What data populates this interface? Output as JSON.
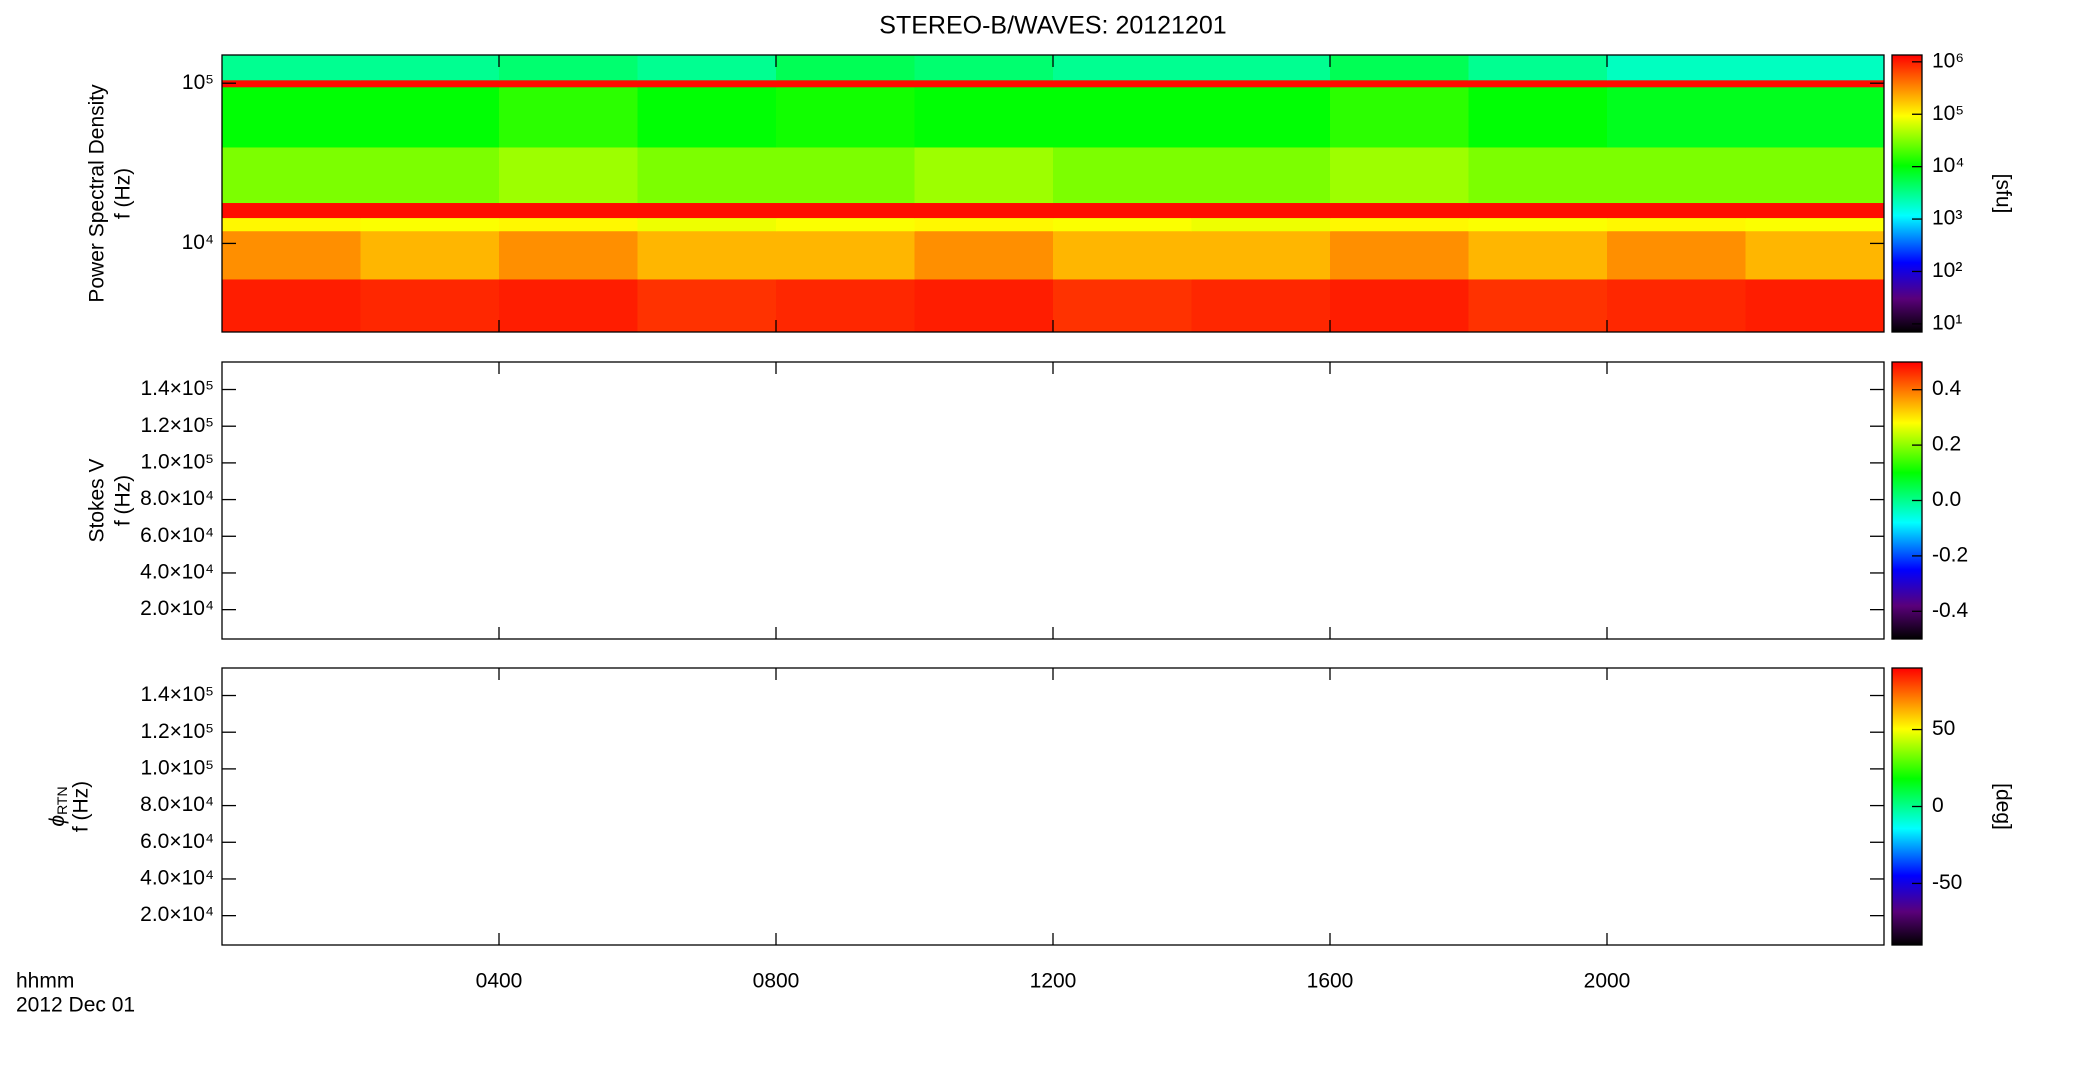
{
  "title": "STEREO-B/WAVES: 20121201",
  "xaxis": {
    "xlim": [
      0,
      24
    ],
    "xticks": [
      {
        "value": 4,
        "label": "0400"
      },
      {
        "value": 8,
        "label": "0800"
      },
      {
        "value": 12,
        "label": "1200"
      },
      {
        "value": 16,
        "label": "1600"
      },
      {
        "value": 20,
        "label": "2000"
      }
    ],
    "labels": [
      "hhmm",
      "2012 Dec 01"
    ]
  },
  "chart_data": [
    {
      "type": "heatmap",
      "ylabel": [
        "Power Spectral Density",
        "f (Hz)"
      ],
      "log_y": true,
      "ylim": [
        2800,
        150000
      ],
      "yticks": [
        {
          "value": 10000,
          "label": "10⁴"
        },
        {
          "value": 100000,
          "label": "10⁵"
        }
      ],
      "time_bins": [
        0,
        2,
        4,
        6,
        8,
        10,
        12,
        14,
        16,
        18,
        20,
        22,
        24
      ],
      "freq_bins": [
        2800,
        6000,
        12000,
        14500,
        18000,
        40000,
        95000,
        105000,
        150000
      ],
      "z": [
        [
          1000000,
          900000,
          1000000,
          800000,
          900000,
          1000000,
          800000,
          900000,
          1000000,
          800000,
          900000,
          1000000
        ],
        [
          300000,
          200000,
          300000,
          200000,
          200000,
          300000,
          200000,
          200000,
          300000,
          200000,
          300000,
          200000
        ],
        [
          100000,
          90000,
          100000,
          80000,
          90000,
          100000,
          90000,
          80000,
          100000,
          90000,
          100000,
          90000
        ],
        [
          1200000,
          1200000,
          1200000,
          1200000,
          1200000,
          1200000,
          1200000,
          1200000,
          1200000,
          1200000,
          1200000,
          1200000
        ],
        [
          30000,
          30000,
          40000,
          30000,
          30000,
          40000,
          30000,
          30000,
          40000,
          30000,
          30000,
          30000
        ],
        [
          10000,
          10000,
          15000,
          10000,
          12000,
          10000,
          10000,
          10000,
          15000,
          10000,
          8000,
          8000
        ],
        [
          1200000,
          1200000,
          1200000,
          1200000,
          1200000,
          1200000,
          1200000,
          1200000,
          1200000,
          1200000,
          1200000,
          1200000
        ],
        [
          3000,
          3000,
          4000,
          3000,
          5000,
          4000,
          3000,
          3000,
          5000,
          3000,
          2000,
          2000
        ]
      ],
      "log_c": true,
      "clim": [
        7,
        1350000
      ],
      "cticks": [
        {
          "value": 10,
          "label": "10¹"
        },
        {
          "value": 100,
          "label": "10²"
        },
        {
          "value": 1000,
          "label": "10³"
        },
        {
          "value": 10000,
          "label": "10⁴"
        },
        {
          "value": 100000,
          "label": "10⁵"
        },
        {
          "value": 1000000,
          "label": "10⁶"
        }
      ],
      "clabel": "[sfu]"
    },
    {
      "type": "empty",
      "ylabel": [
        "Stokes V",
        "f (Hz)"
      ],
      "ylim": [
        4000,
        155000
      ],
      "yticks": [
        {
          "value": 20000,
          "label": "2.0×10⁴"
        },
        {
          "value": 40000,
          "label": "4.0×10⁴"
        },
        {
          "value": 60000,
          "label": "6.0×10⁴"
        },
        {
          "value": 80000,
          "label": "8.0×10⁴"
        },
        {
          "value": 100000,
          "label": "1.0×10⁵"
        },
        {
          "value": 120000,
          "label": "1.2×10⁵"
        },
        {
          "value": 140000,
          "label": "1.4×10⁵"
        }
      ],
      "clim": [
        -0.5,
        0.5
      ],
      "cticks": [
        -0.4,
        -0.2,
        {
          "value": 0,
          "label": "0.0"
        },
        0.2,
        0.4
      ]
    },
    {
      "type": "empty",
      "ylabel": [
        "ϕ",
        "RTN",
        "f (Hz)"
      ],
      "ylim": [
        4000,
        155000
      ],
      "yticks": [
        {
          "value": 20000,
          "label": "2.0×10⁴"
        },
        {
          "value": 40000,
          "label": "4.0×10⁴"
        },
        {
          "value": 60000,
          "label": "6.0×10⁴"
        },
        {
          "value": 80000,
          "label": "8.0×10⁴"
        },
        {
          "value": 100000,
          "label": "1.0×10⁵"
        },
        {
          "value": 120000,
          "label": "1.2×10⁵"
        },
        {
          "value": 140000,
          "label": "1.4×10⁵"
        }
      ],
      "clim": [
        -90,
        90
      ],
      "cticks": [
        -50,
        0,
        50
      ],
      "clabel": "[deg]"
    }
  ]
}
